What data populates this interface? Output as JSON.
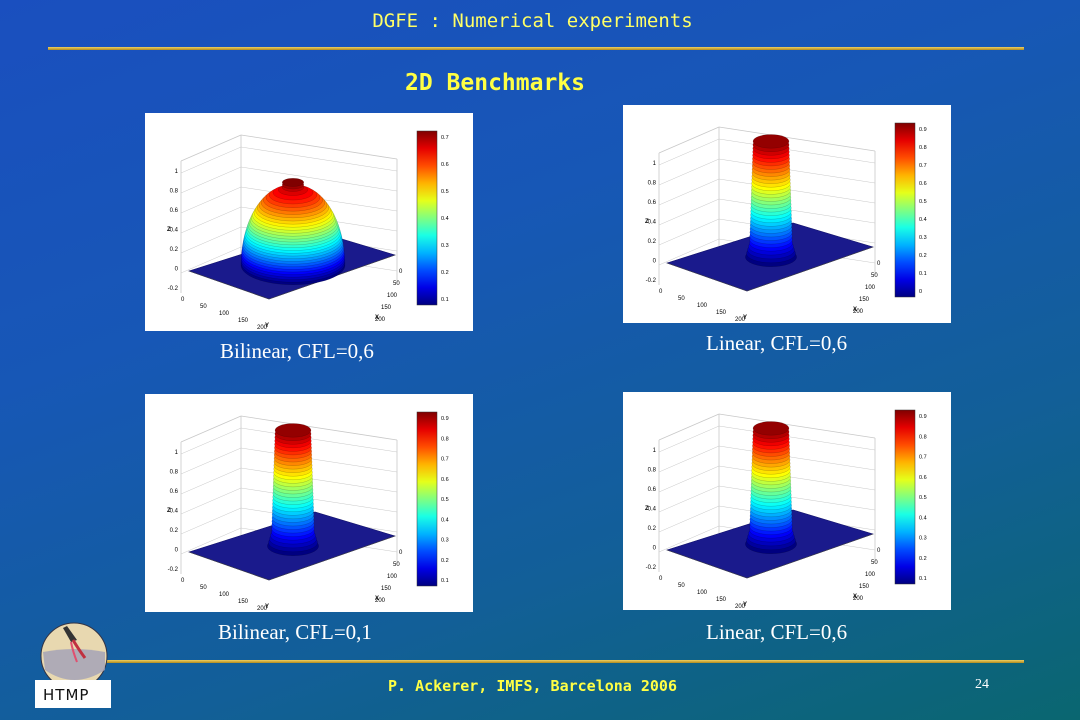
{
  "header": {
    "title": "DGFE : Numerical experiments"
  },
  "slide": {
    "title": "2D Benchmarks"
  },
  "colors": {
    "accent_yellow": "#ffff44",
    "rule_gold": "#d8b040"
  },
  "plots": [
    {
      "caption": "Bilinear, CFL=0,6",
      "z_ticks": [
        "1",
        "0.8",
        "0.6",
        "0.4",
        "0.2",
        "0",
        "-0.2"
      ],
      "x_ticks": [
        "0",
        "50",
        "100",
        "150",
        "200"
      ],
      "y_ticks": [
        "0",
        "50",
        "100",
        "150",
        "200"
      ],
      "colorbar_ticks": [
        "0.7",
        "0.6",
        "0.5",
        "0.4",
        "0.3",
        "0.2",
        "0.1"
      ],
      "zlabel": "Z",
      "xlabel": "X",
      "ylabel": "Y"
    },
    {
      "caption": "Linear, CFL=0,6",
      "z_ticks": [
        "1",
        "0.8",
        "0.6",
        "0.4",
        "0.2",
        "0",
        "-0.2"
      ],
      "x_ticks": [
        "0",
        "50",
        "100",
        "150",
        "200"
      ],
      "y_ticks": [
        "0",
        "50",
        "100",
        "150",
        "200"
      ],
      "colorbar_ticks": [
        "0.9",
        "0.8",
        "0.7",
        "0.6",
        "0.5",
        "0.4",
        "0.3",
        "0.2",
        "0.1",
        "0"
      ],
      "zlabel": "Z",
      "xlabel": "X",
      "ylabel": "Y"
    },
    {
      "caption": "Bilinear, CFL=0,1",
      "z_ticks": [
        "1",
        "0.8",
        "0.6",
        "0.4",
        "0.2",
        "0",
        "-0.2"
      ],
      "x_ticks": [
        "0",
        "50",
        "100",
        "150",
        "200"
      ],
      "y_ticks": [
        "0",
        "50",
        "100",
        "150",
        "200"
      ],
      "colorbar_ticks": [
        "0.9",
        "0.8",
        "0.7",
        "0.6",
        "0.5",
        "0.4",
        "0.3",
        "0.2",
        "0.1"
      ],
      "zlabel": "Z",
      "xlabel": "X",
      "ylabel": "Y"
    },
    {
      "caption": "Linear, CFL=0,6",
      "z_ticks": [
        "1",
        "0.8",
        "0.6",
        "0.4",
        "0.2",
        "0",
        "-0.2"
      ],
      "x_ticks": [
        "0",
        "50",
        "100",
        "150",
        "200"
      ],
      "y_ticks": [
        "0",
        "50",
        "100",
        "150",
        "200"
      ],
      "colorbar_ticks": [
        "0.9",
        "0.8",
        "0.7",
        "0.6",
        "0.5",
        "0.4",
        "0.3",
        "0.2",
        "0.1"
      ],
      "zlabel": "Z",
      "xlabel": "X",
      "ylabel": "Y"
    }
  ],
  "footer": {
    "text": "P. Ackerer, IMFS,  Barcelona 2006",
    "page_number": "24"
  },
  "logo": {
    "text": "HTMP"
  }
}
